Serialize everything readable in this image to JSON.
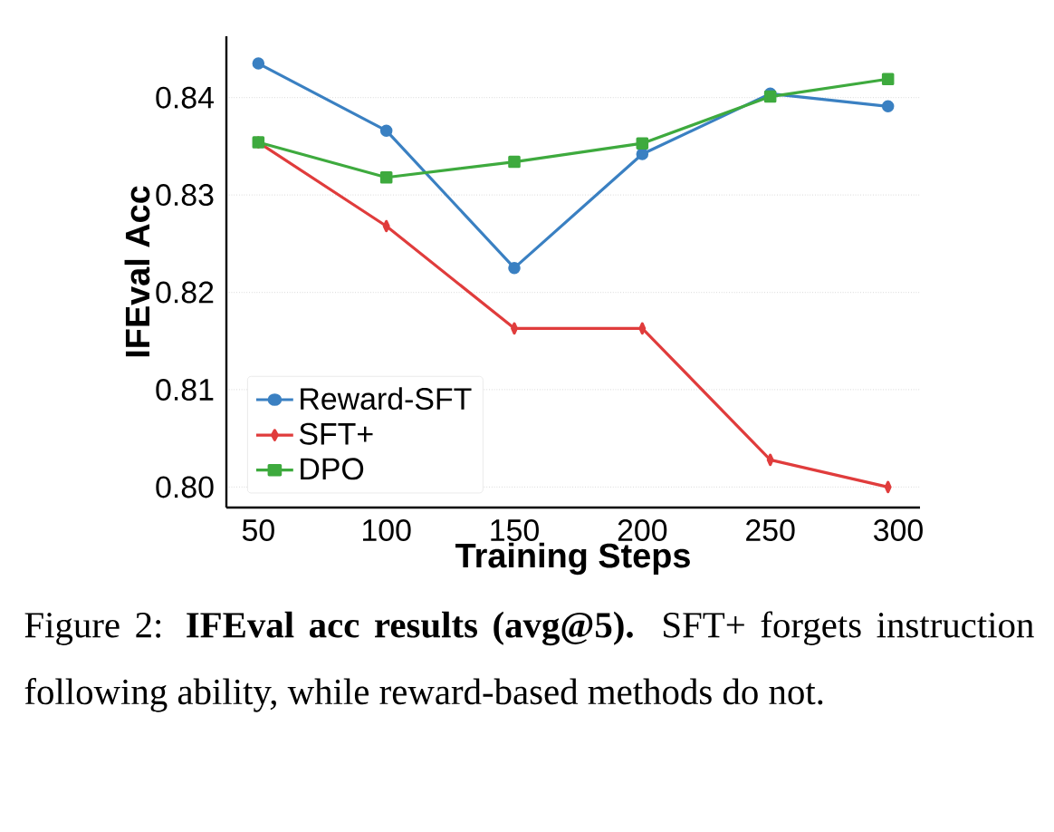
{
  "chart_data": {
    "type": "line",
    "xlabel": "Training Steps",
    "ylabel": "IFEval Acc",
    "xlim": [
      37.5,
      308.5
    ],
    "ylim": [
      0.7979,
      0.8463
    ],
    "xticks": [
      50,
      100,
      150,
      200,
      250,
      300
    ],
    "yticks": [
      {
        "value": 0.8,
        "label": "0.80"
      },
      {
        "value": 0.81,
        "label": "0.81"
      },
      {
        "value": 0.82,
        "label": "0.82"
      },
      {
        "value": 0.83,
        "label": "0.83"
      },
      {
        "value": 0.84,
        "label": "0.84"
      }
    ],
    "x": [
      50,
      100,
      150,
      200,
      250,
      296
    ],
    "series": [
      {
        "name": "Reward-SFT",
        "color": "#3a80c2",
        "marker": "circle",
        "values": [
          0.8435,
          0.8366,
          0.8225,
          0.8342,
          0.8404,
          0.8391
        ]
      },
      {
        "name": "SFT+",
        "color": "#e03c3c",
        "marker": "diamond",
        "values": [
          0.8354,
          0.8268,
          0.8163,
          0.8163,
          0.8028,
          0.8
        ]
      },
      {
        "name": "DPO",
        "color": "#3eaa3e",
        "marker": "square",
        "values": [
          0.8354,
          0.8318,
          0.8334,
          0.8353,
          0.8401,
          0.8419
        ]
      }
    ],
    "grid": "y",
    "legend": "bottom left",
    "line_style": "solid",
    "annotations": [
      "Figure 2: **IFEval acc results (avg@5).** SFT+ forgets instruction following ability, while reward-based methods do not."
    ]
  }
}
